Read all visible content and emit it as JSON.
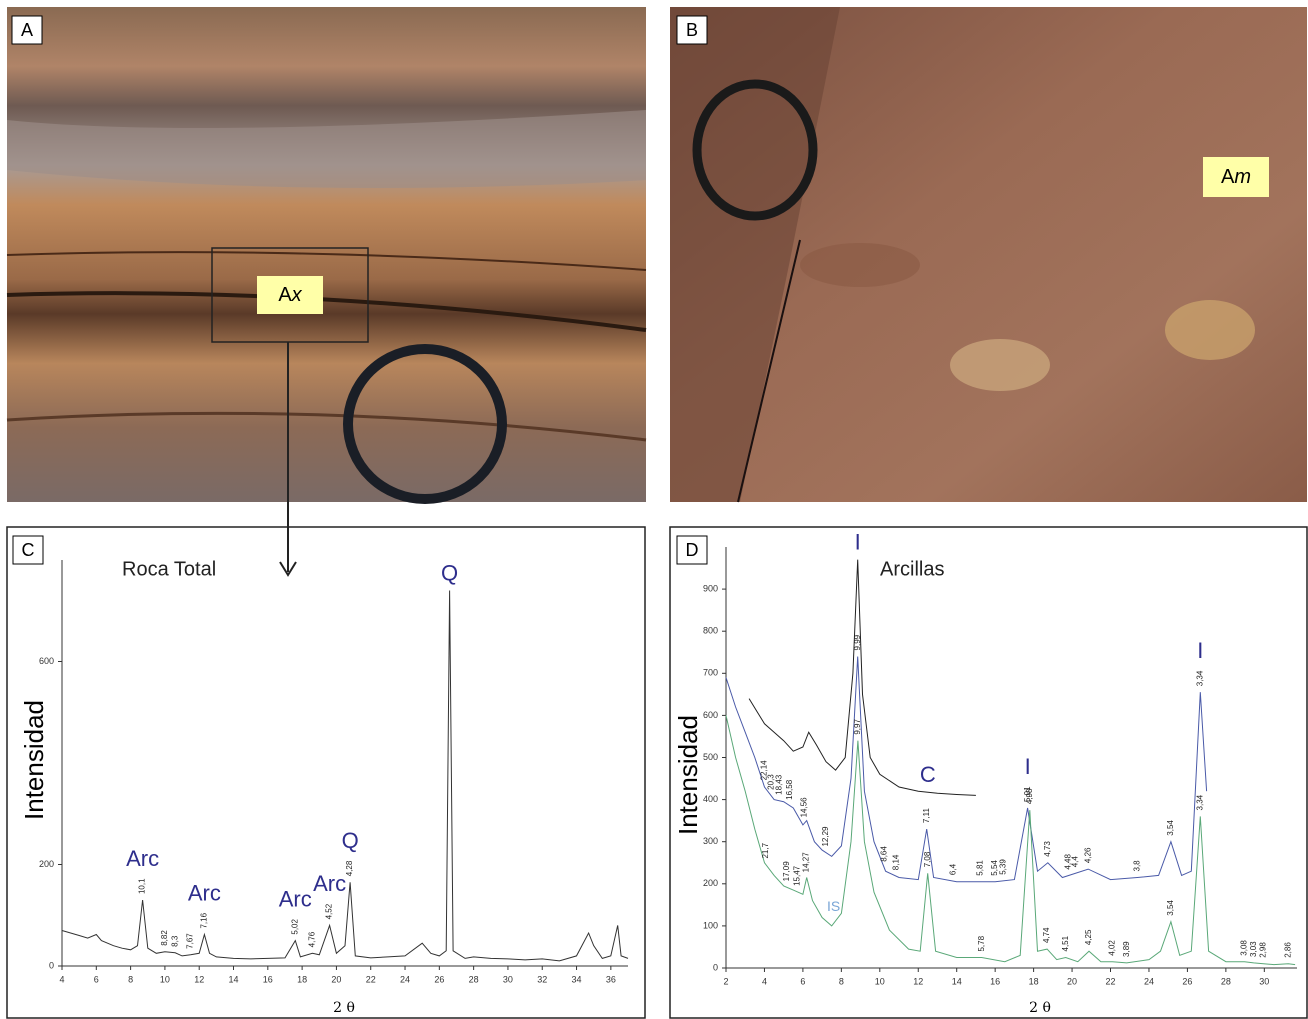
{
  "figure": {
    "panels": [
      {
        "letter": "A",
        "annotation": {
          "text": "A",
          "italic": "x"
        }
      },
      {
        "letter": "B",
        "annotation": {
          "text": "A",
          "italic": "m"
        }
      },
      {
        "letter": "C"
      },
      {
        "letter": "D"
      }
    ]
  },
  "chart_data": [
    {
      "type": "line",
      "title": "Roca Total",
      "x_label": "2 θ",
      "y_label": "Intensidad",
      "xlim": [
        4,
        37
      ],
      "ylim": [
        0,
        800
      ],
      "xticks": [
        4,
        6,
        8,
        10,
        12,
        14,
        16,
        18,
        20,
        22,
        24,
        26,
        28,
        30,
        32,
        34,
        36
      ],
      "yticks": [
        0,
        200,
        600
      ],
      "color": "#333333",
      "phase_color": "#2e2e8c",
      "x": [
        4,
        4.5,
        5,
        5.5,
        6,
        6.3,
        7,
        7.5,
        8,
        8.4,
        8.7,
        9.0,
        9.5,
        10,
        10.6,
        11,
        11.5,
        12,
        12.3,
        12.6,
        13,
        14,
        15,
        16,
        17,
        17.6,
        17.9,
        18.6,
        19,
        19.6,
        20,
        20.5,
        20.8,
        21.1,
        22,
        23,
        24,
        25,
        25.5,
        26,
        26.4,
        26.6,
        26.8,
        27.5,
        28,
        29,
        30,
        31,
        32,
        33,
        34,
        34.7,
        35,
        35.5,
        36,
        36.4,
        36.6,
        37
      ],
      "values": [
        70,
        65,
        60,
        55,
        62,
        50,
        40,
        35,
        32,
        40,
        130,
        35,
        25,
        28,
        26,
        20,
        22,
        25,
        62,
        25,
        18,
        15,
        14,
        15,
        16,
        50,
        18,
        25,
        22,
        80,
        25,
        40,
        165,
        20,
        16,
        18,
        20,
        45,
        25,
        20,
        30,
        740,
        30,
        15,
        18,
        15,
        14,
        12,
        14,
        10,
        20,
        65,
        40,
        15,
        20,
        80,
        20,
        15
      ],
      "peak_labels": [
        {
          "x": 8.7,
          "label": "10,1"
        },
        {
          "x": 10.0,
          "label": "8,82"
        },
        {
          "x": 10.6,
          "label": "8,3"
        },
        {
          "x": 11.5,
          "label": "7,67"
        },
        {
          "x": 12.3,
          "label": "7,16"
        },
        {
          "x": 17.6,
          "label": "5,02"
        },
        {
          "x": 18.6,
          "label": "4,76"
        },
        {
          "x": 19.6,
          "label": "4,52"
        },
        {
          "x": 20.8,
          "label": "4,28"
        }
      ],
      "phase_labels": [
        {
          "x": 8.7,
          "label": "Arc"
        },
        {
          "x": 12.3,
          "label": "Arc"
        },
        {
          "x": 17.6,
          "label": "Arc"
        },
        {
          "x": 19.6,
          "label": "Arc"
        },
        {
          "x": 20.8,
          "label": "Q"
        },
        {
          "x": 26.6,
          "label": "Q"
        }
      ]
    },
    {
      "type": "line",
      "title": "Arcillas",
      "x_label": "2 θ",
      "y_label": "Intensidad",
      "xlim": [
        2,
        31.7
      ],
      "ylim": [
        0,
        1000
      ],
      "xticks": [
        2,
        4,
        6,
        8,
        10,
        12,
        14,
        16,
        18,
        20,
        22,
        24,
        26,
        28,
        30
      ],
      "yticks": [
        0,
        100,
        200,
        300,
        400,
        500,
        600,
        700,
        800,
        900
      ],
      "phase_color": "#2e2e8c",
      "series": [
        {
          "color": "#222222",
          "x": [
            3.2,
            3.6,
            4,
            4.5,
            5,
            5.5,
            6,
            6.3,
            6.7,
            7.2,
            7.7,
            8.2,
            8.6,
            8.85,
            9.1,
            9.5,
            10,
            11,
            12,
            13,
            14,
            15
          ],
          "values": [
            640,
            610,
            580,
            560,
            540,
            515,
            525,
            560,
            530,
            490,
            470,
            500,
            700,
            970,
            650,
            500,
            460,
            430,
            420,
            415,
            412,
            410
          ],
          "peak_labels": [],
          "phase_labels": [
            {
              "x": 8.85,
              "label": "I"
            },
            {
              "x": 12.5,
              "label": "C"
            }
          ]
        },
        {
          "color": "#4a5aa8",
          "x": [
            2,
            2.5,
            3,
            3.5,
            4,
            4.5,
            5,
            5.5,
            6,
            6.2,
            6.6,
            7,
            7.5,
            8,
            8.5,
            8.85,
            9.2,
            9.7,
            10.3,
            11,
            12,
            12.44,
            12.8,
            14,
            16,
            17,
            17.69,
            18.2,
            18.74,
            19.5,
            20.84,
            22,
            23.4,
            24.5,
            25.14,
            25.7,
            26.2,
            26.67,
            27
          ],
          "values": [
            690,
            620,
            560,
            500,
            430,
            400,
            395,
            380,
            340,
            350,
            300,
            280,
            265,
            290,
            450,
            740,
            420,
            300,
            230,
            215,
            210,
            330,
            215,
            205,
            205,
            210,
            380,
            230,
            250,
            215,
            235,
            210,
            215,
            220,
            300,
            220,
            230,
            655,
            420
          ],
          "peak_labels": [
            {
              "x": 3.99,
              "label": "22,14"
            },
            {
              "x": 4.35,
              "label": "20,3"
            },
            {
              "x": 4.79,
              "label": "18,43"
            },
            {
              "x": 5.33,
              "label": "16,58"
            },
            {
              "x": 6.07,
              "label": "14,56"
            },
            {
              "x": 7.19,
              "label": "12,29"
            },
            {
              "x": 8.85,
              "label": "9,99"
            },
            {
              "x": 10.23,
              "label": "8,64"
            },
            {
              "x": 10.86,
              "label": "8,14"
            },
            {
              "x": 12.44,
              "label": "7,11"
            },
            {
              "x": 13.83,
              "label": "6,4"
            },
            {
              "x": 15.24,
              "label": "5,81"
            },
            {
              "x": 15.98,
              "label": "5,54"
            },
            {
              "x": 16.43,
              "label": "5,39"
            },
            {
              "x": 17.69,
              "label": "5,01"
            },
            {
              "x": 18.74,
              "label": "4,73"
            },
            {
              "x": 19.8,
              "label": "4,48"
            },
            {
              "x": 20.17,
              "label": "4,4"
            },
            {
              "x": 20.84,
              "label": "4,26"
            },
            {
              "x": 23.39,
              "label": "3,8"
            },
            {
              "x": 25.14,
              "label": "3,54"
            },
            {
              "x": 26.67,
              "label": "3,34"
            }
          ],
          "phase_labels": [
            {
              "x": 17.69,
              "label": "I"
            },
            {
              "x": 26.67,
              "label": "I"
            }
          ]
        },
        {
          "color": "#5aa878",
          "x": [
            2,
            2.5,
            3,
            3.5,
            4,
            4.5,
            5,
            5.5,
            6,
            6.2,
            6.5,
            7,
            7.5,
            8,
            8.5,
            8.86,
            9.2,
            9.7,
            10.5,
            11.5,
            12.1,
            12.49,
            12.9,
            14,
            15.3,
            16.5,
            17.3,
            17.8,
            18.2,
            18.7,
            19.2,
            19.67,
            20.3,
            20.88,
            21.5,
            22.1,
            22.84,
            24,
            24.6,
            25.14,
            25.6,
            26.2,
            26.67,
            27.1,
            28,
            28.97,
            29.45,
            29.96,
            30.5,
            31.25,
            31.6
          ],
          "values": [
            600,
            500,
            420,
            330,
            250,
            220,
            195,
            185,
            175,
            215,
            160,
            120,
            100,
            130,
            300,
            540,
            300,
            180,
            90,
            45,
            40,
            225,
            40,
            25,
            25,
            15,
            30,
            375,
            40,
            45,
            20,
            25,
            15,
            40,
            15,
            15,
            12,
            20,
            40,
            110,
            30,
            40,
            360,
            40,
            15,
            15,
            12,
            10,
            8,
            10,
            8
          ],
          "peak_labels": [
            {
              "x": 4.07,
              "label": "21,7"
            },
            {
              "x": 5.17,
              "label": "17,09"
            },
            {
              "x": 5.71,
              "label": "15,47"
            },
            {
              "x": 6.19,
              "label": "14,27"
            },
            {
              "x": 8.86,
              "label": "9,97"
            },
            {
              "x": 12.49,
              "label": "7,08"
            },
            {
              "x": 15.32,
              "label": "5,78"
            },
            {
              "x": 17.8,
              "label": "4,98"
            },
            {
              "x": 18.7,
              "label": "4,74"
            },
            {
              "x": 19.67,
              "label": "4,51"
            },
            {
              "x": 20.88,
              "label": "4,25"
            },
            {
              "x": 22.09,
              "label": "4,02"
            },
            {
              "x": 22.84,
              "label": "3,89"
            },
            {
              "x": 25.14,
              "label": "3,54"
            },
            {
              "x": 26.67,
              "label": "3,34"
            },
            {
              "x": 28.97,
              "label": "3,08"
            },
            {
              "x": 29.45,
              "label": "3,03"
            },
            {
              "x": 29.96,
              "label": "2,98"
            },
            {
              "x": 31.25,
              "label": "2,86"
            }
          ],
          "phase_labels": [
            {
              "x": 7.6,
              "label": "IS",
              "color": "#7aa6d6"
            }
          ]
        }
      ]
    }
  ]
}
